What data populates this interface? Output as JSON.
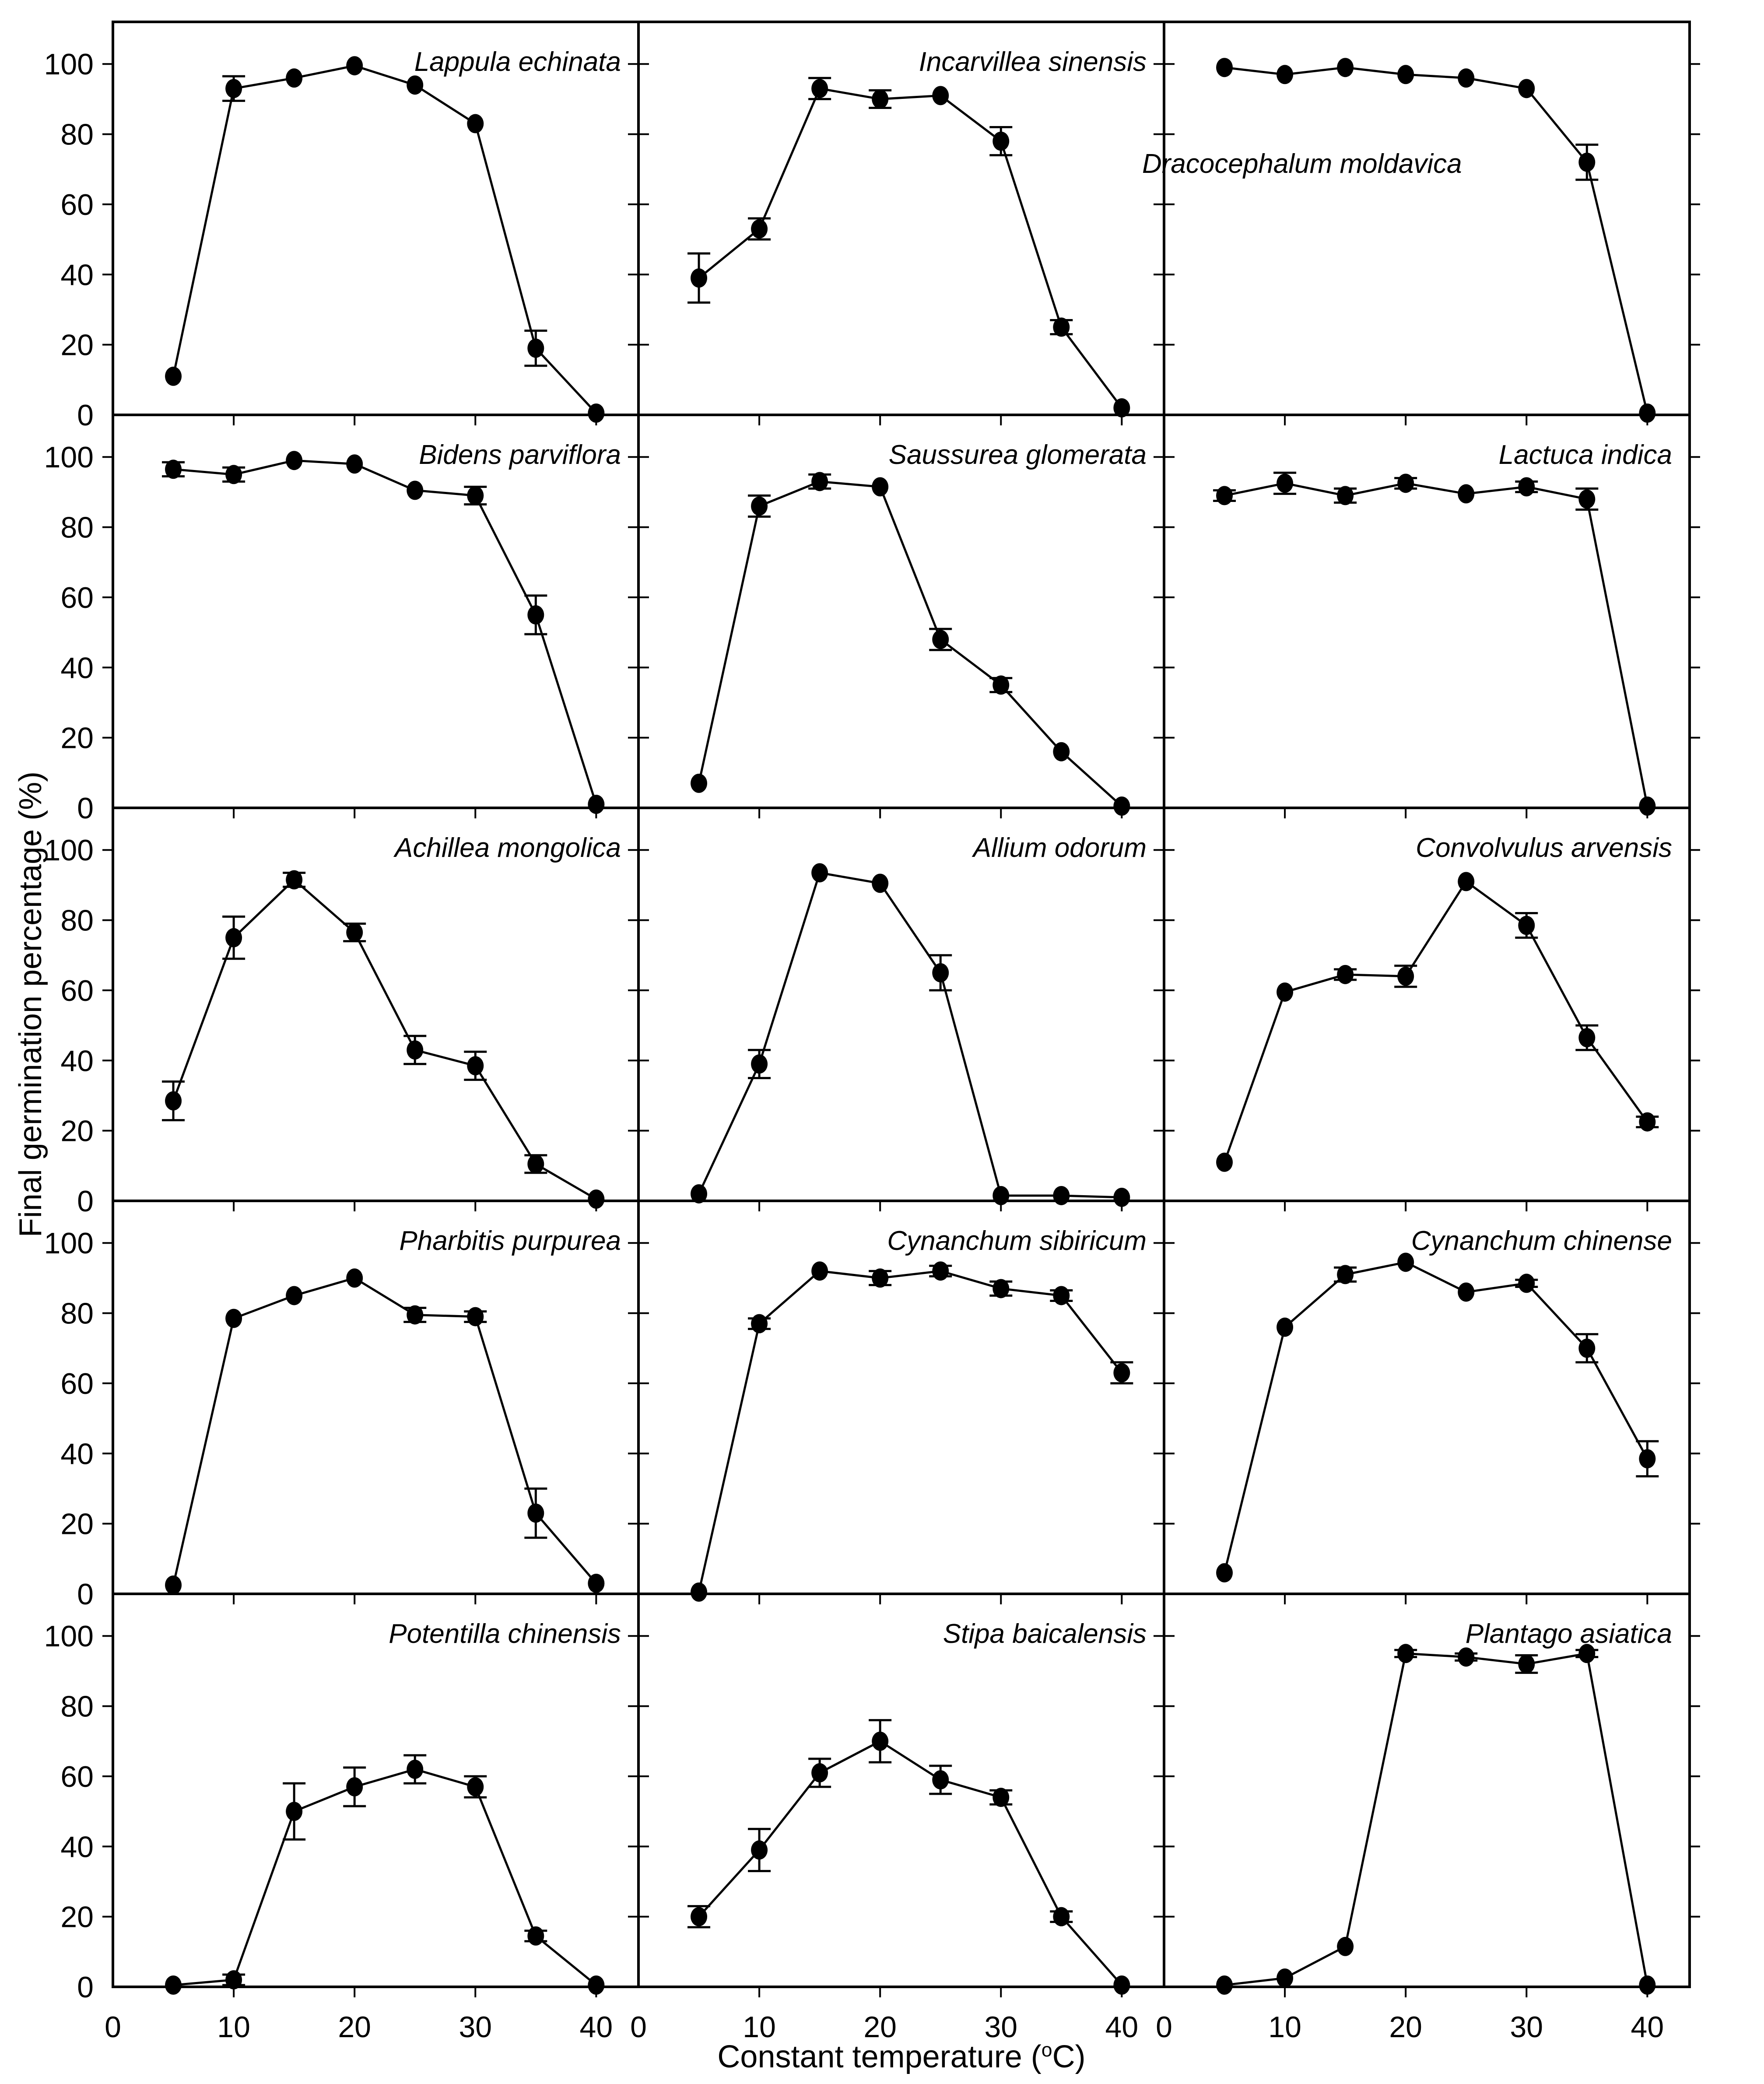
{
  "figure": {
    "ylabel": "Final germination percentage (%)",
    "xlabel_prefix": "Constant temperature (",
    "xlabel_sup": "o",
    "xlabel_suffix": "C)"
  },
  "chart_data": {
    "type": "line",
    "grid": false,
    "marker": "filled-circle",
    "error_bars": true,
    "legend": "none",
    "x_label": "Constant temperature (°C)",
    "y_label": "Final germination percentage (%)",
    "x": [
      5,
      10,
      15,
      20,
      25,
      30,
      35,
      40
    ],
    "x_ticks": [
      0,
      10,
      20,
      30,
      40
    ],
    "y_ticks": [
      100,
      80,
      60,
      40,
      20,
      0
    ],
    "xlim": [
      0,
      43.5
    ],
    "ylim": [
      0,
      112
    ],
    "layout": {
      "rows": 5,
      "cols": 3
    },
    "panels": [
      {
        "species": "Lappula echinata",
        "title_position": "top-right",
        "values": [
          11,
          93,
          96,
          99.5,
          94,
          83,
          19,
          0.5
        ],
        "errors": [
          0,
          3.5,
          0,
          0,
          0,
          0,
          5,
          0
        ]
      },
      {
        "species": "Incarvillea sinensis",
        "title_position": "top-right",
        "values": [
          39,
          53,
          93,
          90,
          91,
          78,
          25,
          2
        ],
        "errors": [
          7,
          3,
          3,
          2.5,
          0,
          4,
          2,
          0
        ]
      },
      {
        "species": "Dracocephalum moldavica",
        "title_position": "mid-left",
        "values": [
          99,
          97,
          99,
          97,
          96,
          93,
          72,
          0.5
        ],
        "errors": [
          0,
          0,
          0,
          0,
          0,
          0,
          5,
          0
        ]
      },
      {
        "species": "Bidens parviflora",
        "title_position": "top-right",
        "values": [
          96.5,
          95,
          99,
          98,
          90.5,
          89,
          55,
          1
        ],
        "errors": [
          2,
          2,
          0,
          0,
          0,
          2.5,
          5.5,
          0
        ]
      },
      {
        "species": "Saussurea glomerata",
        "title_position": "top-right",
        "values": [
          7,
          86,
          93,
          91.5,
          48,
          35,
          16,
          0.5
        ],
        "errors": [
          0,
          3,
          2,
          0,
          3,
          2,
          0,
          0
        ]
      },
      {
        "species": "Lactuca indica",
        "title_position": "top-right",
        "values": [
          89,
          92.5,
          89,
          92.5,
          89.5,
          91.5,
          88,
          0.5
        ],
        "errors": [
          1.5,
          3,
          2,
          1.5,
          0,
          1.5,
          3,
          0
        ]
      },
      {
        "species": "Achillea mongolica",
        "title_position": "top-right",
        "values": [
          28.5,
          75,
          91.5,
          76.5,
          43,
          38.5,
          10.5,
          0.5
        ],
        "errors": [
          5.5,
          6,
          2,
          2.5,
          4,
          4,
          2.5,
          0
        ]
      },
      {
        "species": "Allium odorum",
        "title_position": "top-right",
        "values": [
          2,
          39,
          93.5,
          90.5,
          65,
          1.5,
          1.5,
          1
        ],
        "errors": [
          0,
          4,
          0,
          0,
          5,
          0,
          0,
          0
        ]
      },
      {
        "species": "Convolvulus arvensis",
        "title_position": "top-right",
        "values": [
          11,
          59.5,
          64.5,
          64,
          91,
          78.5,
          46.5,
          22.5
        ],
        "errors": [
          0,
          0,
          1.5,
          3,
          0,
          3.5,
          3.5,
          1.5
        ]
      },
      {
        "species": "Pharbitis purpurea",
        "title_position": "top-right",
        "values": [
          2.5,
          78.5,
          85,
          90,
          79.5,
          79,
          23,
          3
        ],
        "errors": [
          0,
          0,
          0,
          0,
          2,
          1.5,
          7,
          0
        ]
      },
      {
        "species": "Cynanchum sibiricum",
        "title_position": "top-right",
        "values": [
          0.5,
          77,
          92,
          90,
          92,
          87,
          85,
          63
        ],
        "errors": [
          0,
          1.5,
          0,
          2,
          1.5,
          2,
          1.5,
          3
        ]
      },
      {
        "species": "Cynanchum chinense",
        "title_position": "top-right",
        "values": [
          6,
          76,
          91,
          94.5,
          86,
          88.5,
          70,
          38.5
        ],
        "errors": [
          0,
          0,
          2,
          0,
          0,
          1,
          4,
          5
        ]
      },
      {
        "species": "Potentilla chinensis",
        "title_position": "top-right",
        "values": [
          0.5,
          2,
          50,
          57,
          62,
          57,
          14.5,
          0.5
        ],
        "errors": [
          0,
          1.5,
          8,
          5.5,
          4,
          3,
          1.5,
          0
        ]
      },
      {
        "species": "Stipa baicalensis",
        "title_position": "top-right",
        "values": [
          20,
          39,
          61,
          70,
          59,
          54,
          20,
          0.5
        ],
        "errors": [
          3,
          6,
          4,
          6,
          4,
          2,
          1.5,
          0
        ]
      },
      {
        "species": "Plantago asiatica",
        "title_position": "top-right",
        "values": [
          0.5,
          2.5,
          11.5,
          95,
          94,
          92,
          95,
          0.5
        ],
        "errors": [
          0,
          0,
          0,
          1,
          1,
          2.5,
          1,
          0
        ]
      }
    ]
  }
}
